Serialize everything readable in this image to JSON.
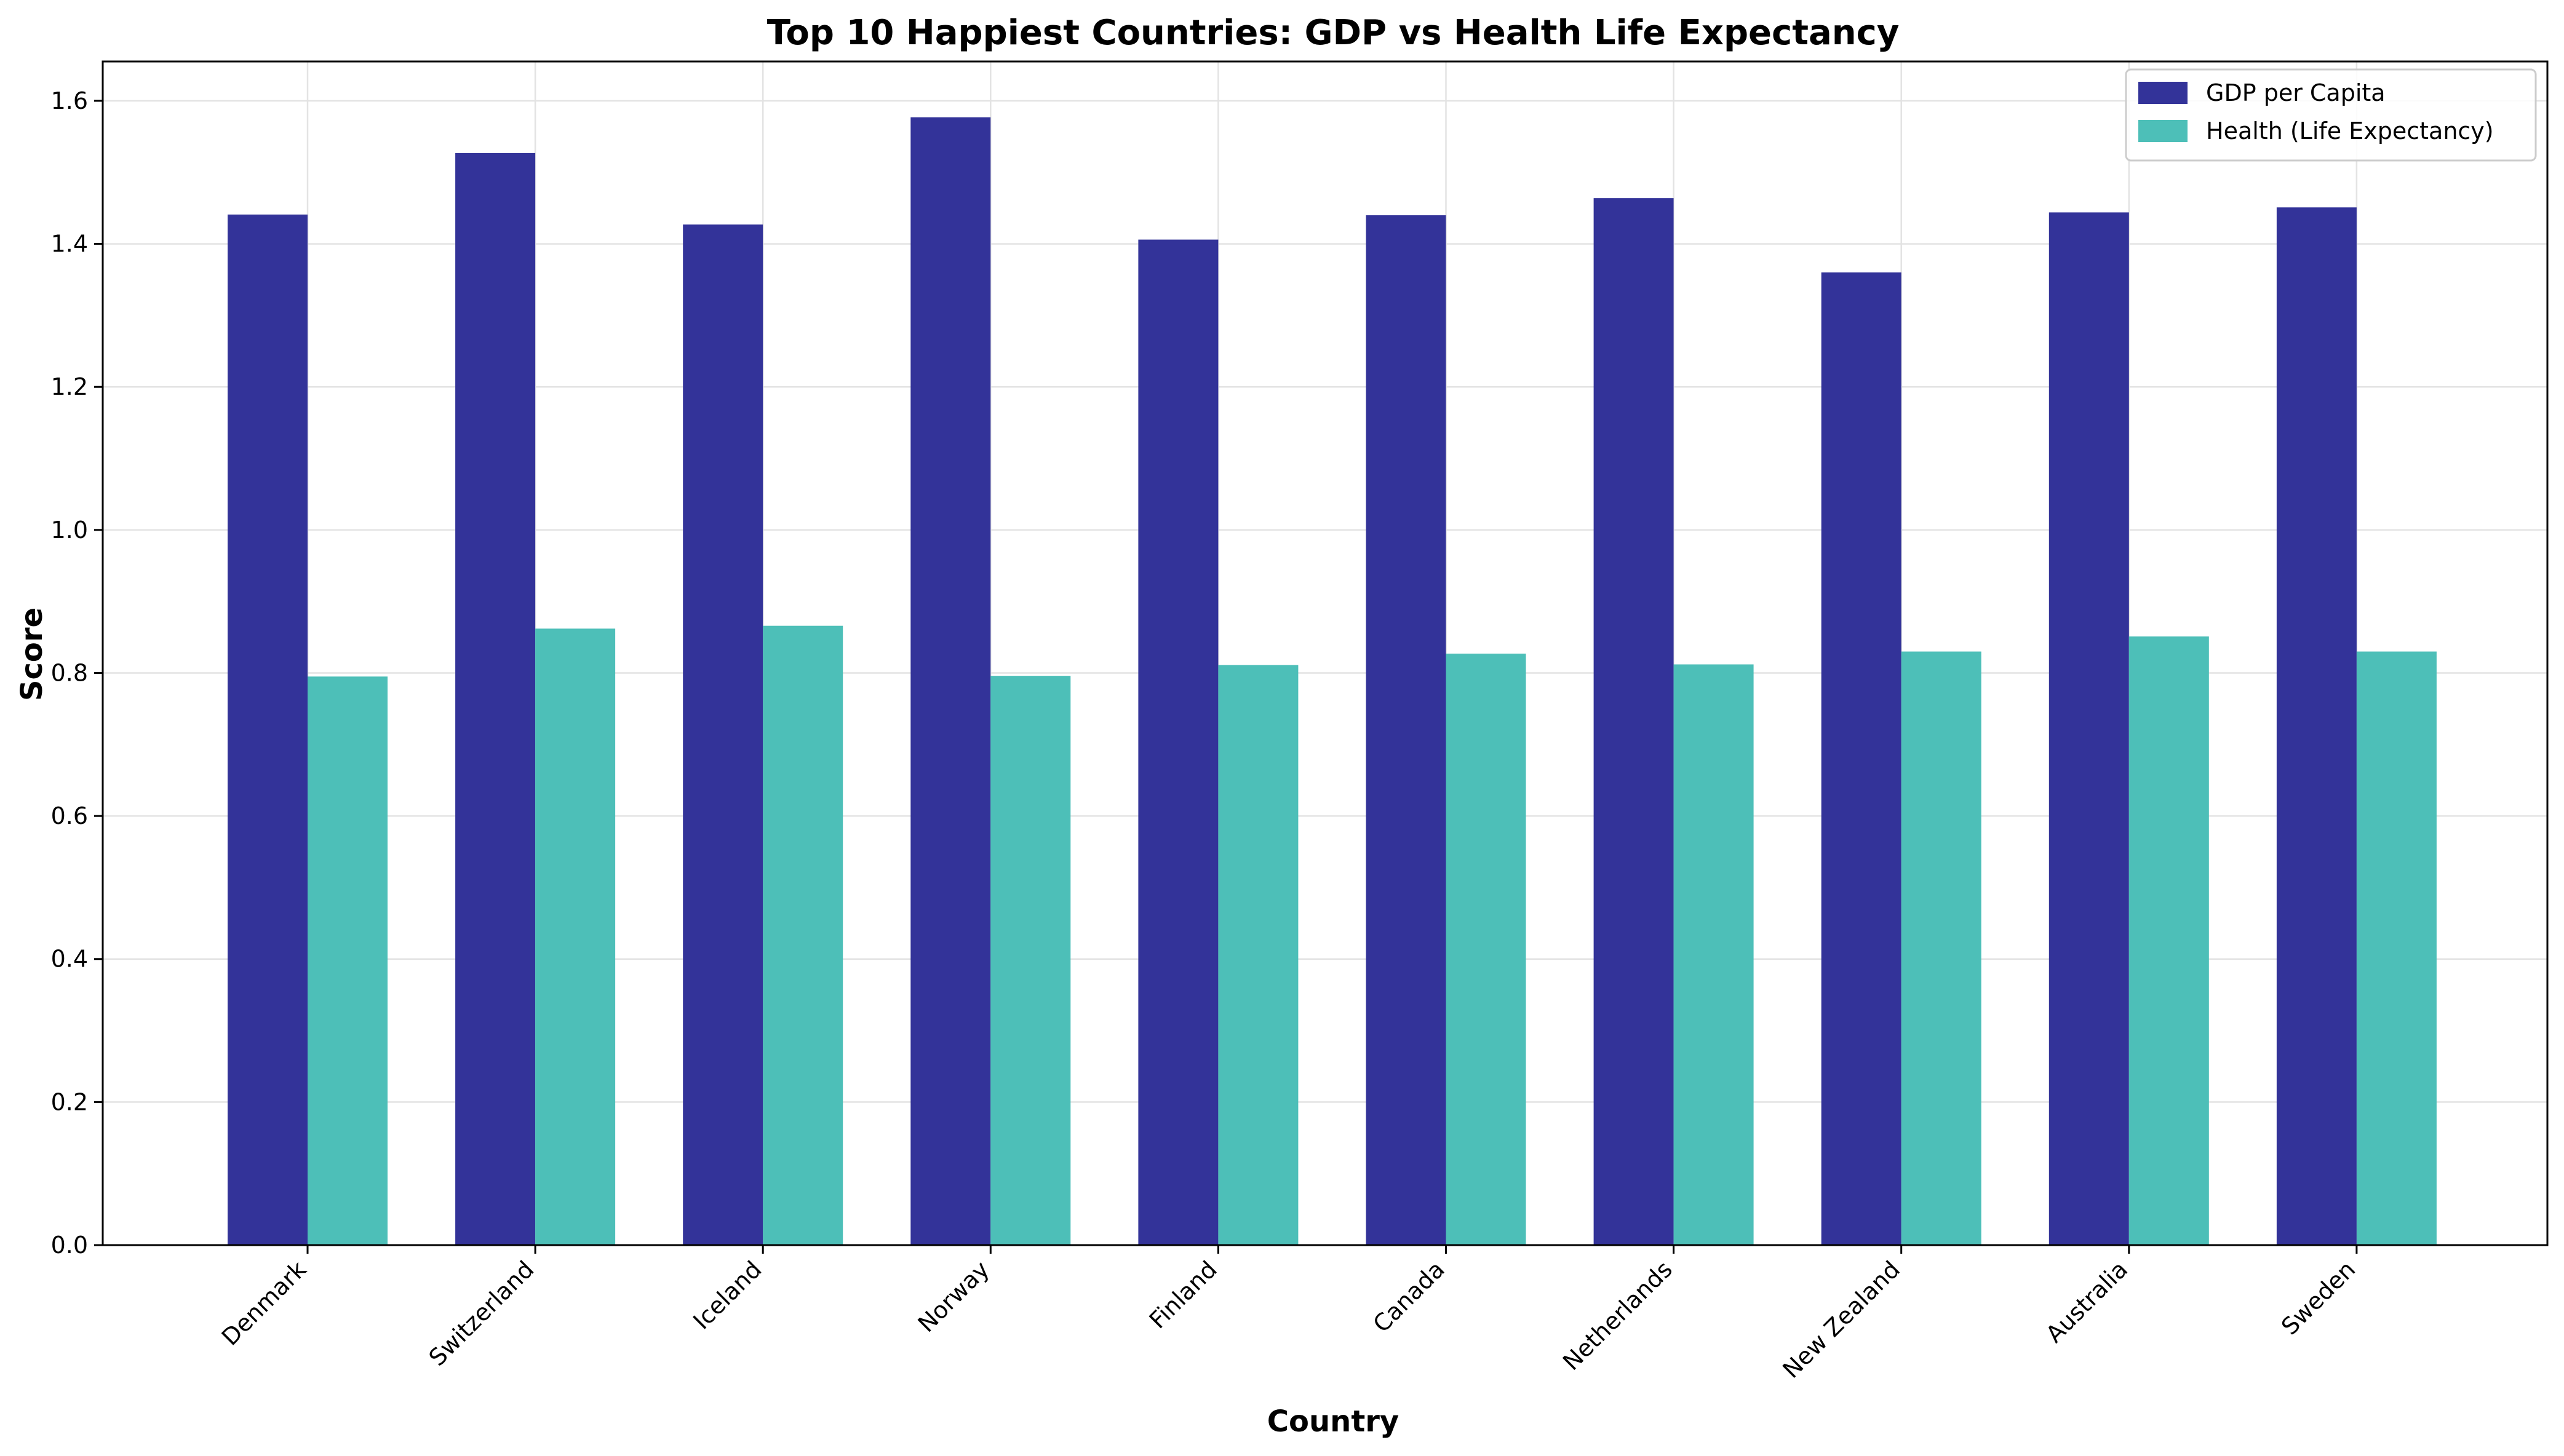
{
  "chart_data": {
    "type": "bar",
    "title": "Top 10 Happiest Countries: GDP vs Health Life Expectancy",
    "xlabel": "Country",
    "ylabel": "Score",
    "categories": [
      "Denmark",
      "Switzerland",
      "Iceland",
      "Norway",
      "Finland",
      "Canada",
      "Netherlands",
      "New Zealand",
      "Australia",
      "Sweden"
    ],
    "series": [
      {
        "name": "GDP per Capita",
        "color": "#333399",
        "values": [
          1.441,
          1.527,
          1.427,
          1.577,
          1.406,
          1.44,
          1.464,
          1.36,
          1.444,
          1.451
        ]
      },
      {
        "name": "Health (Life Expectancy)",
        "color": "#4dbfb8",
        "values": [
          0.795,
          0.862,
          0.866,
          0.796,
          0.811,
          0.827,
          0.812,
          0.83,
          0.851,
          0.83
        ]
      }
    ],
    "ylim": [
      0,
      1.655
    ],
    "yticks": [
      "0.0",
      "0.2",
      "0.4",
      "0.6",
      "0.8",
      "1.0",
      "1.2",
      "1.4",
      "1.6"
    ],
    "grid": true,
    "legend_position": "top-right"
  }
}
